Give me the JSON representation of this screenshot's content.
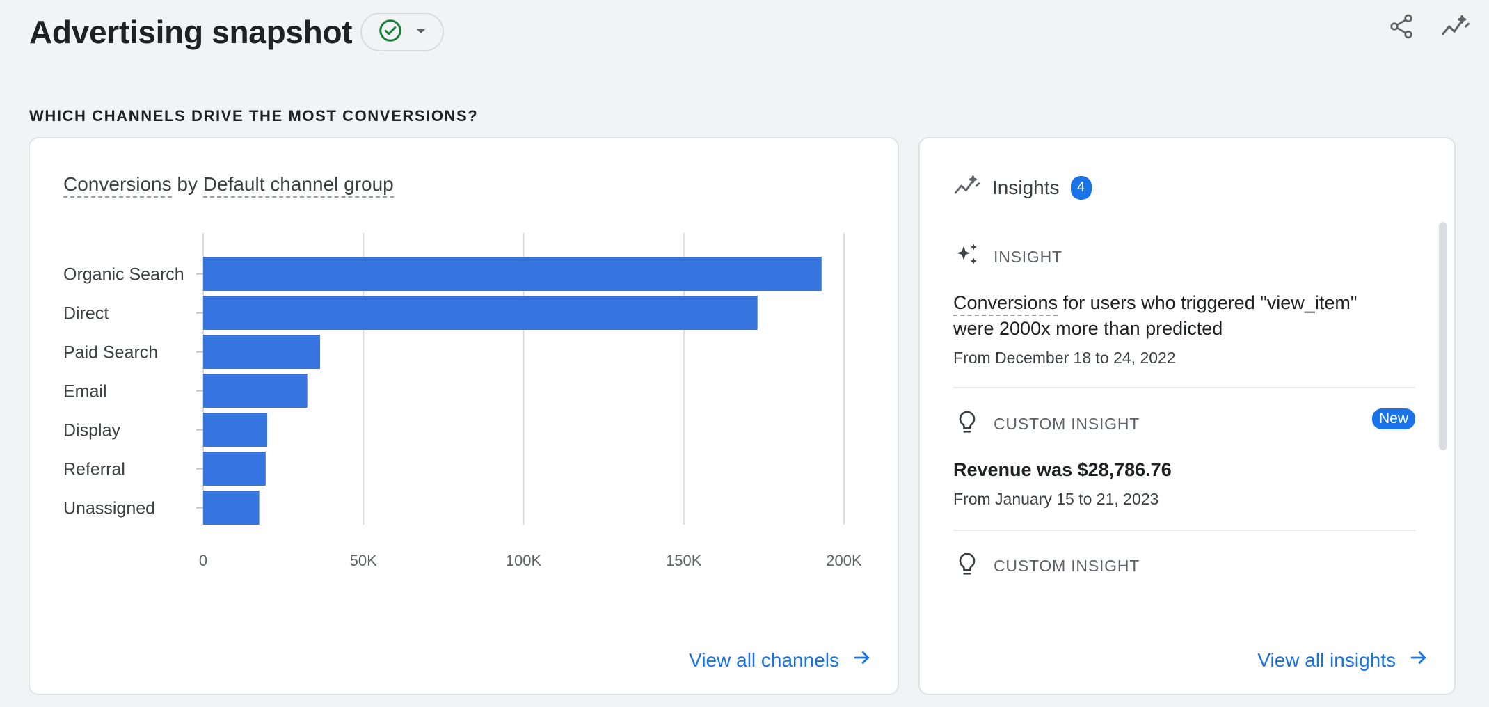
{
  "header": {
    "title": "Advertising snapshot",
    "status_icon": "check-circle-icon",
    "dropdown_icon": "caret-down-icon",
    "actions": [
      {
        "name": "share",
        "icon": "share-icon"
      },
      {
        "name": "insights",
        "icon": "insights-sparkline-icon"
      }
    ]
  },
  "section": {
    "heading": "WHICH CHANNELS DRIVE THE MOST CONVERSIONS?"
  },
  "chart_card": {
    "title_part1": "Conversions",
    "title_by": "by",
    "title_part2": "Default channel group",
    "view_all_label": "View all channels"
  },
  "chart_data": {
    "type": "bar",
    "orientation": "horizontal",
    "title": "Conversions by Default channel group",
    "categories": [
      "Organic Search",
      "Direct",
      "Paid Search",
      "Email",
      "Display",
      "Referral",
      "Unassigned"
    ],
    "values": [
      193000,
      173000,
      36500,
      32500,
      20000,
      19500,
      17500
    ],
    "xlim": [
      0,
      200000
    ],
    "xticks": [
      "0",
      "50K",
      "100K",
      "150K",
      "200K"
    ],
    "xtick_values": [
      0,
      50000,
      100000,
      150000,
      200000
    ],
    "grid": true,
    "bar_color": "#3674e0"
  },
  "insights": {
    "title": "Insights",
    "count": "4",
    "items": [
      {
        "type": "INSIGHT",
        "icon": "sparkle-icon",
        "line1_underlined": "Conversions",
        "line1_rest": " for users who triggered \"view_item\"",
        "line2": "were 2000x more than predicted",
        "date": "From December 18 to 24, 2022"
      },
      {
        "type": "CUSTOM INSIGHT",
        "icon": "lightbulb-icon",
        "badge": "New",
        "body": "Revenue was $28,786.76",
        "date": "From January 15 to 21, 2023"
      },
      {
        "type": "CUSTOM INSIGHT",
        "icon": "lightbulb-icon"
      }
    ],
    "view_all_label": "View all insights"
  },
  "colors": {
    "accent": "#1a73e8",
    "success": "#188038",
    "background": "#f1f3f4"
  }
}
